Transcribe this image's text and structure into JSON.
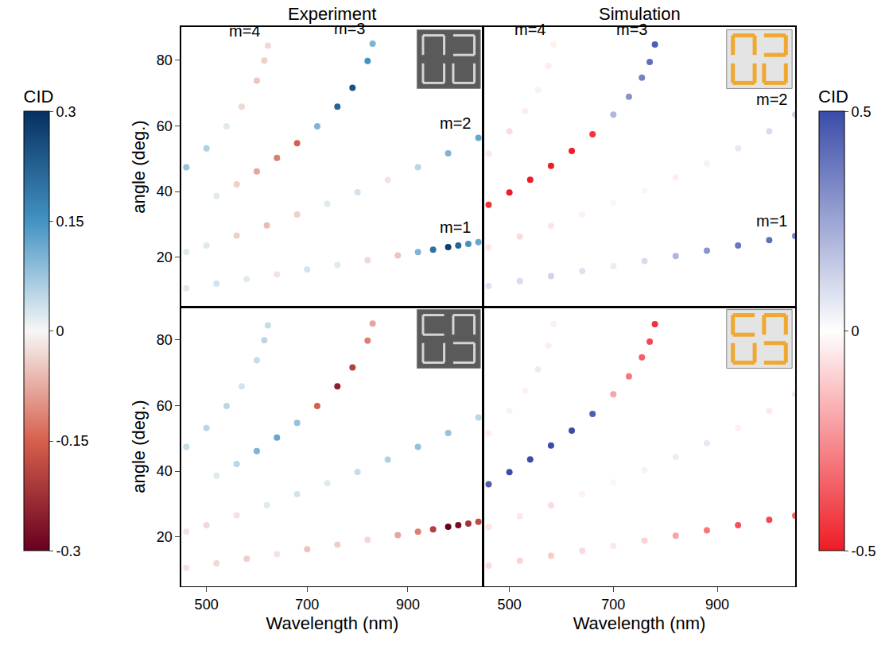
{
  "chart_data": {
    "type": "scatter",
    "xlim": [
      450,
      1050
    ],
    "xticks": [
      500,
      700,
      900
    ],
    "ylim": [
      5,
      90
    ],
    "yticks": [
      20,
      40,
      60,
      80
    ],
    "x_label": "Wavelength (nm)",
    "y_label": "angle (deg.)",
    "columns": [
      {
        "title": "Experiment",
        "colorbar": {
          "title": "CID",
          "range": [
            -0.3,
            0.3
          ],
          "ticks": [
            -0.3,
            -0.15,
            0,
            0.15,
            0.3
          ],
          "colors": [
            "#67001f",
            "#d6604d",
            "#f7f7f7",
            "#4393c3",
            "#053061"
          ]
        },
        "panels": [
          {
            "tick_labels": "y",
            "series": [
              {
                "name": "m=4",
                "x": [
                  460,
                  500,
                  540,
                  570,
                  600,
                  615,
                  622
                ],
                "y": [
                  47.4,
                  53.1,
                  59.8,
                  65.8,
                  73.7,
                  79.8,
                  84.3
                ],
                "cid": [
                  0.08,
                  0.06,
                  0.02,
                  -0.03,
                  -0.05,
                  -0.04,
                  -0.03
                ]
              },
              {
                "name": "m=3",
                "x": [
                  520,
                  560,
                  600,
                  640,
                  680,
                  720,
                  760,
                  790,
                  820,
                  830
                ],
                "y": [
                  38.6,
                  42.2,
                  46.1,
                  50.2,
                  54.7,
                  59.8,
                  65.8,
                  71.5,
                  79.7,
                  84.9
                ],
                "cid": [
                  0.02,
                  -0.04,
                  -0.08,
                  -0.12,
                  -0.15,
                  0.1,
                  0.22,
                  0.25,
                  0.15,
                  0.1
                ]
              },
              {
                "name": "m=2",
                "x": [
                  460,
                  500,
                  560,
                  620,
                  680,
                  740,
                  800,
                  860,
                  920,
                  980,
                  1040
                ],
                "y": [
                  21.6,
                  23.6,
                  26.6,
                  29.7,
                  33.0,
                  36.3,
                  39.8,
                  43.5,
                  47.4,
                  51.6,
                  56.3
                ],
                "cid": [
                  0.02,
                  0.02,
                  -0.04,
                  -0.06,
                  -0.04,
                  0.02,
                  0.03,
                  -0.02,
                  0.05,
                  0.1,
                  0.12
                ]
              },
              {
                "name": "m=1",
                "x": [
                  460,
                  520,
                  580,
                  640,
                  700,
                  760,
                  820,
                  880,
                  920,
                  950,
                  980,
                  1000,
                  1020,
                  1040
                ],
                "y": [
                  10.6,
                  12.0,
                  13.4,
                  14.8,
                  16.3,
                  17.7,
                  19.1,
                  20.6,
                  21.6,
                  22.3,
                  23.1,
                  23.6,
                  24.1,
                  24.6
                ],
                "cid": [
                  0.02,
                  0.03,
                  0.02,
                  -0.02,
                  0.03,
                  0.02,
                  -0.03,
                  -0.05,
                  0.1,
                  0.2,
                  0.28,
                  0.22,
                  0.15,
                  0.12
                ]
              }
            ]
          },
          {
            "tick_labels": true,
            "series": [
              {
                "x": [
                  460,
                  500,
                  540,
                  570,
                  600,
                  615,
                  622
                ],
                "y": [
                  47.4,
                  53.1,
                  59.8,
                  65.8,
                  73.7,
                  79.8,
                  84.3
                ],
                "cid": [
                  0.04,
                  0.05,
                  0.05,
                  0.03,
                  0.04,
                  0.05,
                  0.04
                ]
              },
              {
                "x": [
                  520,
                  560,
                  600,
                  640,
                  680,
                  720,
                  760,
                  790,
                  820,
                  830
                ],
                "y": [
                  38.6,
                  42.2,
                  46.1,
                  50.2,
                  54.7,
                  59.8,
                  65.8,
                  71.5,
                  79.7,
                  84.9
                ],
                "cid": [
                  0.02,
                  0.05,
                  0.1,
                  0.12,
                  0.08,
                  -0.15,
                  -0.25,
                  -0.2,
                  -0.12,
                  -0.08
                ]
              },
              {
                "x": [
                  460,
                  500,
                  560,
                  620,
                  680,
                  740,
                  800,
                  860,
                  920,
                  980,
                  1040
                ],
                "y": [
                  21.6,
                  23.6,
                  26.6,
                  29.7,
                  33.0,
                  36.3,
                  39.8,
                  43.5,
                  47.4,
                  51.6,
                  56.3
                ],
                "cid": [
                  -0.02,
                  -0.03,
                  -0.02,
                  0.02,
                  0.03,
                  0.02,
                  0.04,
                  0.06,
                  0.08,
                  0.08,
                  0.05
                ]
              },
              {
                "x": [
                  460,
                  520,
                  580,
                  640,
                  700,
                  760,
                  820,
                  880,
                  920,
                  950,
                  980,
                  1000,
                  1020,
                  1040
                ],
                "y": [
                  10.6,
                  12.0,
                  13.4,
                  14.8,
                  16.3,
                  17.7,
                  19.1,
                  20.6,
                  21.6,
                  22.3,
                  23.1,
                  23.6,
                  24.1,
                  24.6
                ],
                "cid": [
                  -0.02,
                  -0.03,
                  -0.04,
                  -0.02,
                  -0.05,
                  -0.04,
                  -0.03,
                  -0.08,
                  -0.12,
                  -0.2,
                  -0.3,
                  -0.28,
                  -0.22,
                  -0.18
                ]
              }
            ]
          }
        ]
      },
      {
        "title": "Simulation",
        "colorbar": {
          "title": "CID",
          "range": [
            -0.5,
            0.5
          ],
          "ticks": [
            -0.5,
            0,
            0.5
          ],
          "colors": [
            "#ee1c25",
            "#ffffff",
            "#3a4ca8"
          ]
        },
        "panels": [
          {
            "tick_labels": false,
            "series": [
              {
                "name": "m=4",
                "x": [
                  460,
                  500,
                  530,
                  555,
                  575,
                  585
                ],
                "y": [
                  51.5,
                  58.3,
                  64.4,
                  70.9,
                  78.2,
                  84.7
                ],
                "cid": [
                  -0.05,
                  -0.08,
                  -0.04,
                  0.03,
                  -0.04,
                  -0.03
                ]
              },
              {
                "name": "m=3",
                "x": [
                  460,
                  500,
                  540,
                  580,
                  620,
                  660,
                  700,
                  730,
                  755,
                  770,
                  780
                ],
                "y": [
                  36.0,
                  39.7,
                  43.6,
                  47.8,
                  52.3,
                  57.4,
                  63.4,
                  68.8,
                  74.6,
                  79.4,
                  84.7
                ],
                "cid": [
                  -0.45,
                  -0.5,
                  -0.5,
                  -0.5,
                  -0.5,
                  -0.45,
                  0.2,
                  0.3,
                  0.35,
                  0.4,
                  0.45
                ]
              },
              {
                "name": "m=2",
                "x": [
                  460,
                  520,
                  580,
                  640,
                  700,
                  760,
                  820,
                  880,
                  940,
                  1000,
                  1050
                ],
                "y": [
                  23.0,
                  26.3,
                  29.6,
                  33.0,
                  36.6,
                  40.3,
                  44.3,
                  48.5,
                  53.1,
                  58.3,
                  63.4
                ],
                "cid": [
                  -0.05,
                  -0.08,
                  -0.06,
                  -0.03,
                  0.02,
                  -0.02,
                  -0.04,
                  0.03,
                  0.06,
                  0.1,
                  0.12
                ]
              },
              {
                "name": "m=1",
                "x": [
                  460,
                  520,
                  580,
                  640,
                  700,
                  760,
                  820,
                  880,
                  940,
                  1000,
                  1050
                ],
                "y": [
                  11.3,
                  12.8,
                  14.3,
                  15.8,
                  17.3,
                  18.9,
                  20.4,
                  22.0,
                  23.6,
                  25.2,
                  26.5
                ],
                "cid": [
                  0.08,
                  0.1,
                  0.12,
                  0.08,
                  0.05,
                  0.1,
                  0.2,
                  0.3,
                  0.38,
                  0.4,
                  0.35
                ]
              }
            ]
          },
          {
            "tick_labels": "x",
            "series": [
              {
                "x": [
                  460,
                  500,
                  530,
                  555,
                  575,
                  585
                ],
                "y": [
                  51.5,
                  58.3,
                  64.4,
                  70.9,
                  78.2,
                  84.7
                ],
                "cid": [
                  -0.04,
                  0.03,
                  -0.03,
                  0.05,
                  -0.04,
                  -0.03
                ]
              },
              {
                "x": [
                  460,
                  500,
                  540,
                  580,
                  620,
                  660,
                  700,
                  730,
                  755,
                  770,
                  780
                ],
                "y": [
                  36.0,
                  39.7,
                  43.6,
                  47.8,
                  52.3,
                  57.4,
                  63.4,
                  68.8,
                  74.6,
                  79.4,
                  84.7
                ],
                "cid": [
                  0.45,
                  0.5,
                  0.5,
                  0.5,
                  0.5,
                  0.45,
                  -0.2,
                  -0.3,
                  -0.35,
                  -0.4,
                  -0.45
                ]
              },
              {
                "x": [
                  460,
                  520,
                  580,
                  640,
                  700,
                  760,
                  820,
                  880,
                  940,
                  1000,
                  1050
                ],
                "y": [
                  23.0,
                  26.3,
                  29.6,
                  33.0,
                  36.6,
                  40.3,
                  44.3,
                  48.5,
                  53.1,
                  58.3,
                  63.4
                ],
                "cid": [
                  -0.06,
                  -0.05,
                  -0.08,
                  -0.03,
                  0.02,
                  0.03,
                  0.05,
                  0.06,
                  -0.03,
                  -0.05,
                  -0.06
                ]
              },
              {
                "x": [
                  460,
                  520,
                  580,
                  640,
                  700,
                  760,
                  820,
                  880,
                  940,
                  1000,
                  1050
                ],
                "y": [
                  11.3,
                  12.8,
                  14.3,
                  15.8,
                  17.3,
                  18.9,
                  20.4,
                  22.0,
                  23.6,
                  25.2,
                  26.5
                ],
                "cid": [
                  -0.08,
                  -0.1,
                  -0.12,
                  -0.08,
                  -0.05,
                  -0.1,
                  -0.2,
                  -0.3,
                  -0.38,
                  -0.4,
                  -0.35
                ]
              }
            ]
          }
        ]
      }
    ]
  }
}
